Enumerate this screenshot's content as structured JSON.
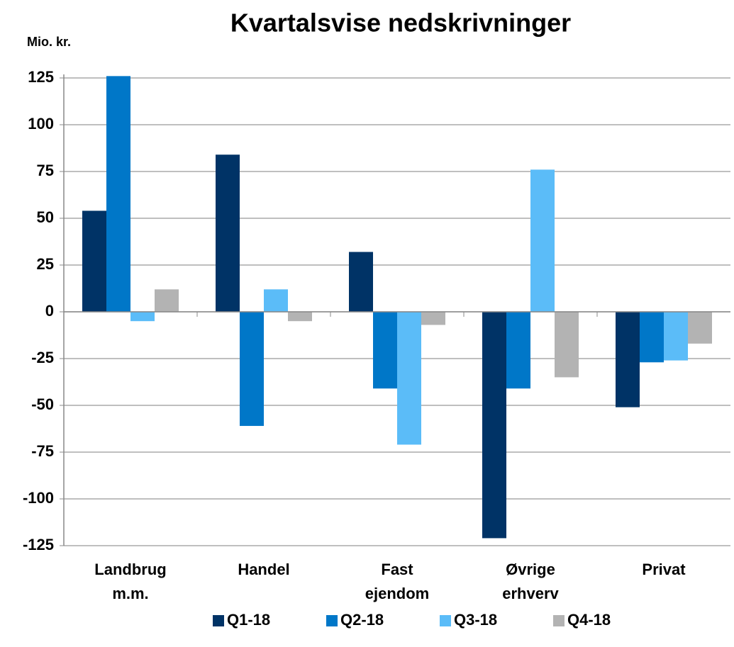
{
  "chart_data": {
    "type": "bar",
    "title": "Kvartalsvise nedskrivninger",
    "y_label": "Mio. kr.",
    "categories": [
      "Landbrug m.m.",
      "Handel",
      "Fast ejendom",
      "Øvrige erhverv",
      "Privat"
    ],
    "series": [
      {
        "name": "Q1-18",
        "color": "#003366",
        "values": [
          54,
          84,
          32,
          -121,
          -51
        ]
      },
      {
        "name": "Q2-18",
        "color": "#0077c8",
        "values": [
          126,
          -61,
          -41,
          -41,
          -27
        ]
      },
      {
        "name": "Q3-18",
        "color": "#5bbcf8",
        "values": [
          -5,
          12,
          -71,
          76,
          -26
        ]
      },
      {
        "name": "Q4-18",
        "color": "#b3b3b3",
        "values": [
          12,
          -5,
          -7,
          -35,
          -17
        ]
      }
    ],
    "ylim": [
      -125,
      125
    ],
    "yticks": [
      -125,
      -100,
      -75,
      -50,
      -25,
      0,
      25,
      50,
      75,
      100,
      125
    ],
    "grid": true,
    "legend": "bottom"
  }
}
